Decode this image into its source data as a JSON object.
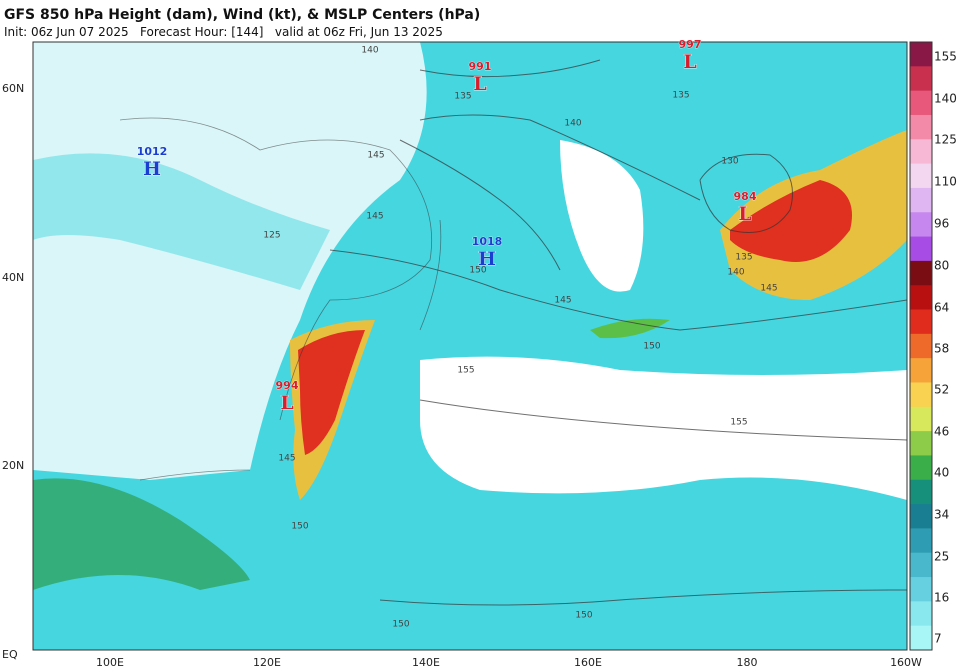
{
  "header": {
    "title": "GFS 850 hPa Height (dam), Wind (kt), & MSLP Centers (hPa)",
    "subtitle": "Init: 06z Jun 07 2025   Forecast Hour: [144]   valid at 06z Fri, Jun 13 2025"
  },
  "map": {
    "lat_labels": [
      "60N",
      "40N",
      "20N",
      "EQ"
    ],
    "lon_labels": [
      "100E",
      "120E",
      "140E",
      "160E",
      "180",
      "160W"
    ],
    "centers": [
      {
        "type": "L",
        "value": 997
      },
      {
        "type": "L",
        "value": 991
      },
      {
        "type": "H",
        "value": 1012
      },
      {
        "type": "L",
        "value": 984
      },
      {
        "type": "H",
        "value": 1018
      },
      {
        "type": "L",
        "value": 994
      }
    ],
    "contour_labels": [
      140,
      135,
      135,
      145,
      140,
      130,
      145,
      125,
      150,
      135,
      140,
      145,
      145,
      150,
      155,
      155,
      145,
      150,
      150,
      150
    ]
  },
  "colorbar": {
    "ticks": [
      155,
      140,
      125,
      110,
      96,
      80,
      64,
      58,
      52,
      46,
      40,
      34,
      25,
      16,
      7
    ]
  }
}
